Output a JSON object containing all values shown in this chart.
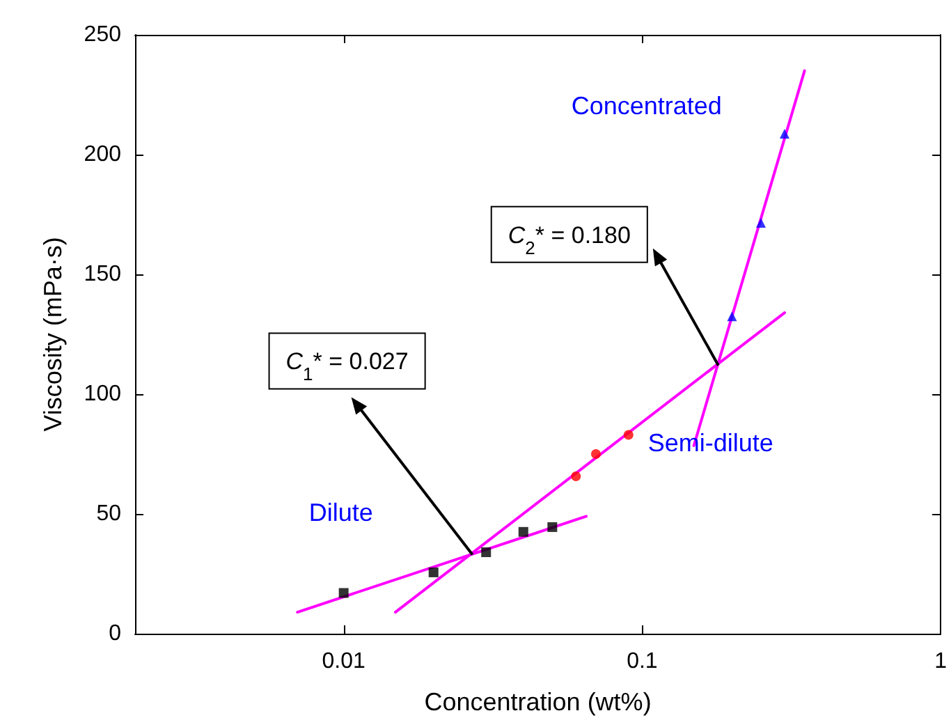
{
  "chart_data": {
    "type": "scatter",
    "xlabel": "Concentration (wt%)",
    "ylabel": "Viscosity (mPa·s)",
    "log": "x",
    "xlim": [
      0.002,
      1
    ],
    "xticks": [
      0.01,
      0.1,
      1
    ],
    "ylim": [
      0,
      250
    ],
    "yticks": [
      0,
      50,
      100,
      150,
      200,
      250
    ],
    "grid": false,
    "series": [
      {
        "type": "scatter",
        "marker": "square",
        "color": "#000000",
        "x": [
          0.01,
          0.02,
          0.03,
          0.04,
          0.05
        ],
        "values": [
          17,
          25.6,
          34,
          42.5,
          44.5
        ]
      },
      {
        "type": "scatter",
        "marker": "circle",
        "color": "#ff0000",
        "x": [
          0.06,
          0.07,
          0.09
        ],
        "values": [
          65.7,
          75,
          83
        ]
      },
      {
        "type": "scatter",
        "marker": "triangle",
        "color": "#0000ff",
        "x": [
          0.2,
          0.25,
          0.3
        ],
        "values": [
          132.5,
          171.5,
          208.7
        ]
      },
      {
        "type": "line",
        "marker": "none",
        "color": "#ff00ff",
        "x": [
          0.007,
          0.065
        ],
        "values": [
          9,
          49
        ]
      },
      {
        "type": "line",
        "marker": "none",
        "color": "#ff00ff",
        "x": [
          0.0149,
          0.3
        ],
        "values": [
          9,
          134
        ]
      },
      {
        "type": "line",
        "marker": "none",
        "color": "#ff00ff",
        "x": [
          0.149,
          0.35
        ],
        "values": [
          78.5,
          235
        ]
      }
    ],
    "annotations": [
      "Dilute",
      "Semi-dilute",
      "Concentrated",
      {
        "text": "C$_{1}$* = 0.027",
        "x": 0.027,
        "y": 33
      },
      {
        "text": "C$_{2}$* = 0.180",
        "x": 0.18,
        "y": 112
      }
    ]
  }
}
